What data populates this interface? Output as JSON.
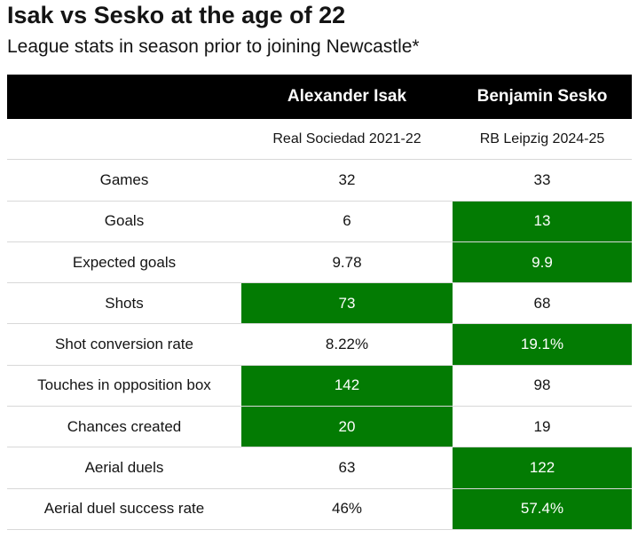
{
  "header": {
    "title": "Isak vs Sesko at the age of 22",
    "subtitle": "League stats in season prior to joining Newcastle*"
  },
  "table": {
    "columns": [
      "Alexander Isak",
      "Benjamin Sesko"
    ],
    "subheaders": [
      "Real Sociedad 2021-22",
      "RB Leipzig 2024-25"
    ],
    "highlight_color": "#037b03",
    "rows": [
      {
        "label": "Games",
        "cells": [
          "32",
          "33"
        ],
        "highlight": null
      },
      {
        "label": "Goals",
        "cells": [
          "6",
          "13"
        ],
        "highlight": 1
      },
      {
        "label": "Expected goals",
        "cells": [
          "9.78",
          "9.9"
        ],
        "highlight": 1
      },
      {
        "label": "Shots",
        "cells": [
          "73",
          "68"
        ],
        "highlight": 0
      },
      {
        "label": "Shot conversion rate",
        "cells": [
          "8.22%",
          "19.1%"
        ],
        "highlight": 1
      },
      {
        "label": "Touches in opposition box",
        "cells": [
          "142",
          "98"
        ],
        "highlight": 0
      },
      {
        "label": "Chances created",
        "cells": [
          "20",
          "19"
        ],
        "highlight": 0
      },
      {
        "label": "Aerial duels",
        "cells": [
          "63",
          "122"
        ],
        "highlight": 1
      },
      {
        "label": "Aerial duel success rate",
        "cells": [
          "46%",
          "57.4%"
        ],
        "highlight": 1
      }
    ]
  }
}
